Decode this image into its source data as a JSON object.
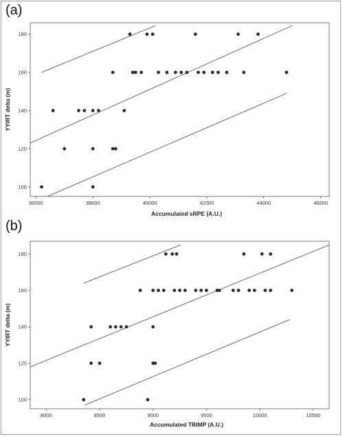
{
  "chart_data": [
    {
      "type": "scatter",
      "panel_label": "(a)",
      "xlabel": "Accumulated sRPE (A.U.)",
      "ylabel": "YYIRT delta (m)",
      "xlim": [
        35800,
        46300
      ],
      "ylim": [
        95,
        186
      ],
      "xticks": [
        36000,
        38000,
        40000,
        42000,
        44000,
        46000
      ],
      "yticks": [
        100,
        120,
        140,
        160,
        180
      ],
      "points": [
        [
          36200,
          100
        ],
        [
          36600,
          140
        ],
        [
          37000,
          120
        ],
        [
          37500,
          140
        ],
        [
          37700,
          140
        ],
        [
          38000,
          140
        ],
        [
          38200,
          140
        ],
        [
          38000,
          120
        ],
        [
          38700,
          120
        ],
        [
          38800,
          120
        ],
        [
          38000,
          100
        ],
        [
          39100,
          140
        ],
        [
          38700,
          160
        ],
        [
          39400,
          160
        ],
        [
          39500,
          160
        ],
        [
          39700,
          160
        ],
        [
          39300,
          180
        ],
        [
          39900,
          180
        ],
        [
          40100,
          180
        ],
        [
          40300,
          160
        ],
        [
          40600,
          160
        ],
        [
          40900,
          160
        ],
        [
          41100,
          160
        ],
        [
          41300,
          160
        ],
        [
          41600,
          180
        ],
        [
          41700,
          160
        ],
        [
          41900,
          160
        ],
        [
          42200,
          160
        ],
        [
          42400,
          160
        ],
        [
          42700,
          160
        ],
        [
          43100,
          180
        ],
        [
          43300,
          160
        ],
        [
          43800,
          180
        ],
        [
          44800,
          160
        ]
      ],
      "fit_lines": [
        {
          "role": "upper",
          "x": [
            36200,
            40200
          ],
          "y": [
            160,
            184.5
          ]
        },
        {
          "role": "fit",
          "x": [
            35800,
            45000
          ],
          "y": [
            123,
            184.5
          ]
        },
        {
          "role": "lower",
          "x": [
            36400,
            44800
          ],
          "y": [
            95,
            149
          ]
        }
      ]
    },
    {
      "type": "scatter",
      "panel_label": "(b)",
      "xlabel": "Accumulated TRIMP (A.U.)",
      "ylabel": "YYIRT delta (m)",
      "xlim": [
        7850,
        10650
      ],
      "ylim": [
        95,
        187
      ],
      "xticks": [
        8000,
        8500,
        9000,
        9500,
        10000,
        10500
      ],
      "yticks": [
        100,
        120,
        140,
        160,
        180
      ],
      "points": [
        [
          8350,
          100
        ],
        [
          8420,
          140
        ],
        [
          8420,
          120
        ],
        [
          8500,
          120
        ],
        [
          8600,
          140
        ],
        [
          8650,
          140
        ],
        [
          8700,
          140
        ],
        [
          8750,
          140
        ],
        [
          8880,
          160
        ],
        [
          8950,
          100
        ],
        [
          9000,
          140
        ],
        [
          9000,
          120
        ],
        [
          9020,
          120
        ],
        [
          9000,
          160
        ],
        [
          9050,
          160
        ],
        [
          9100,
          160
        ],
        [
          9120,
          180
        ],
        [
          9180,
          180
        ],
        [
          9220,
          180
        ],
        [
          9200,
          160
        ],
        [
          9250,
          160
        ],
        [
          9300,
          160
        ],
        [
          9400,
          160
        ],
        [
          9450,
          160
        ],
        [
          9500,
          160
        ],
        [
          9600,
          160
        ],
        [
          9620,
          160
        ],
        [
          9750,
          160
        ],
        [
          9800,
          160
        ],
        [
          9850,
          180
        ],
        [
          9900,
          160
        ],
        [
          9950,
          160
        ],
        [
          10020,
          180
        ],
        [
          10050,
          160
        ],
        [
          10100,
          160
        ],
        [
          10100,
          180
        ],
        [
          10300,
          160
        ]
      ],
      "fit_lines": [
        {
          "role": "upper",
          "x": [
            8350,
            9260
          ],
          "y": [
            164,
            185
          ]
        },
        {
          "role": "fit",
          "x": [
            7850,
            10650
          ],
          "y": [
            118,
            185
          ]
        },
        {
          "role": "lower",
          "x": [
            8360,
            10280
          ],
          "y": [
            97,
            144
          ]
        }
      ]
    }
  ]
}
